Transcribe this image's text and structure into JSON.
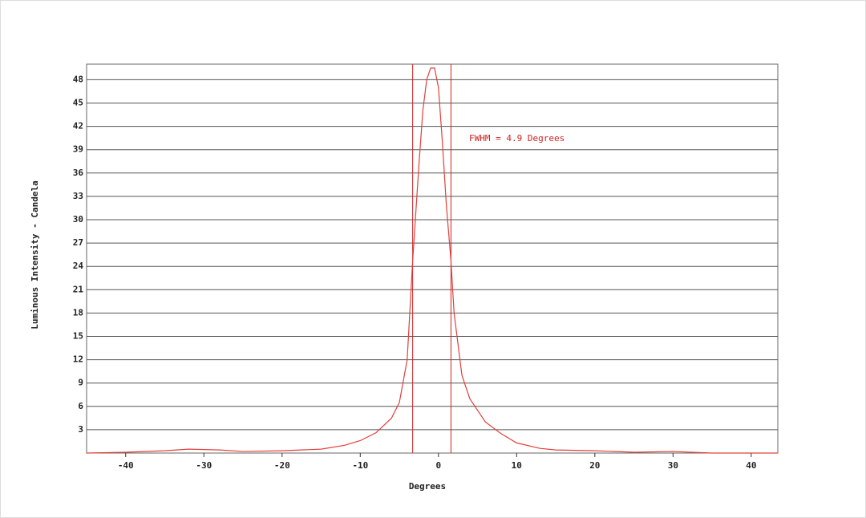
{
  "chart_data": {
    "type": "line",
    "x_label": "Degrees",
    "y_label": "Luminous Intensity - Candela",
    "annotation": "FWHM =  4.9 Degrees",
    "x": [
      -45,
      -40,
      -35,
      -32,
      -28,
      -25,
      -20,
      -15,
      -12,
      -10,
      -8,
      -6,
      -5,
      -4,
      -3.3,
      -2.5,
      -2,
      -1.5,
      -1,
      -0.5,
      0,
      0.5,
      1,
      1.6,
      2,
      3,
      4,
      5,
      6,
      8,
      10,
      13,
      15,
      20,
      25,
      30,
      35,
      43.4
    ],
    "series": [
      {
        "color": "#e0403a",
        "values": [
          0,
          0.1,
          0.3,
          0.5,
          0.4,
          0.2,
          0.3,
          0.5,
          1.0,
          1.6,
          2.6,
          4.5,
          6.5,
          12,
          24.7,
          37,
          44,
          48,
          49.5,
          49.5,
          47,
          40,
          32,
          24.7,
          18,
          10,
          7,
          5.5,
          4,
          2.5,
          1.3,
          0.6,
          0.4,
          0.3,
          0.1,
          0.2,
          0,
          0
        ]
      }
    ],
    "vlines": [
      -3.3,
      1.6
    ],
    "vline_color": "#d02020",
    "xlim": [
      -45,
      43.4
    ],
    "ylim": [
      0,
      50
    ],
    "xticks": [
      -40,
      -30,
      -20,
      -10,
      0,
      10,
      20,
      30,
      40
    ],
    "yticks": [
      3,
      6,
      9,
      12,
      15,
      18,
      21,
      24,
      27,
      30,
      33,
      36,
      39,
      42,
      45,
      48
    ],
    "grid": true
  }
}
